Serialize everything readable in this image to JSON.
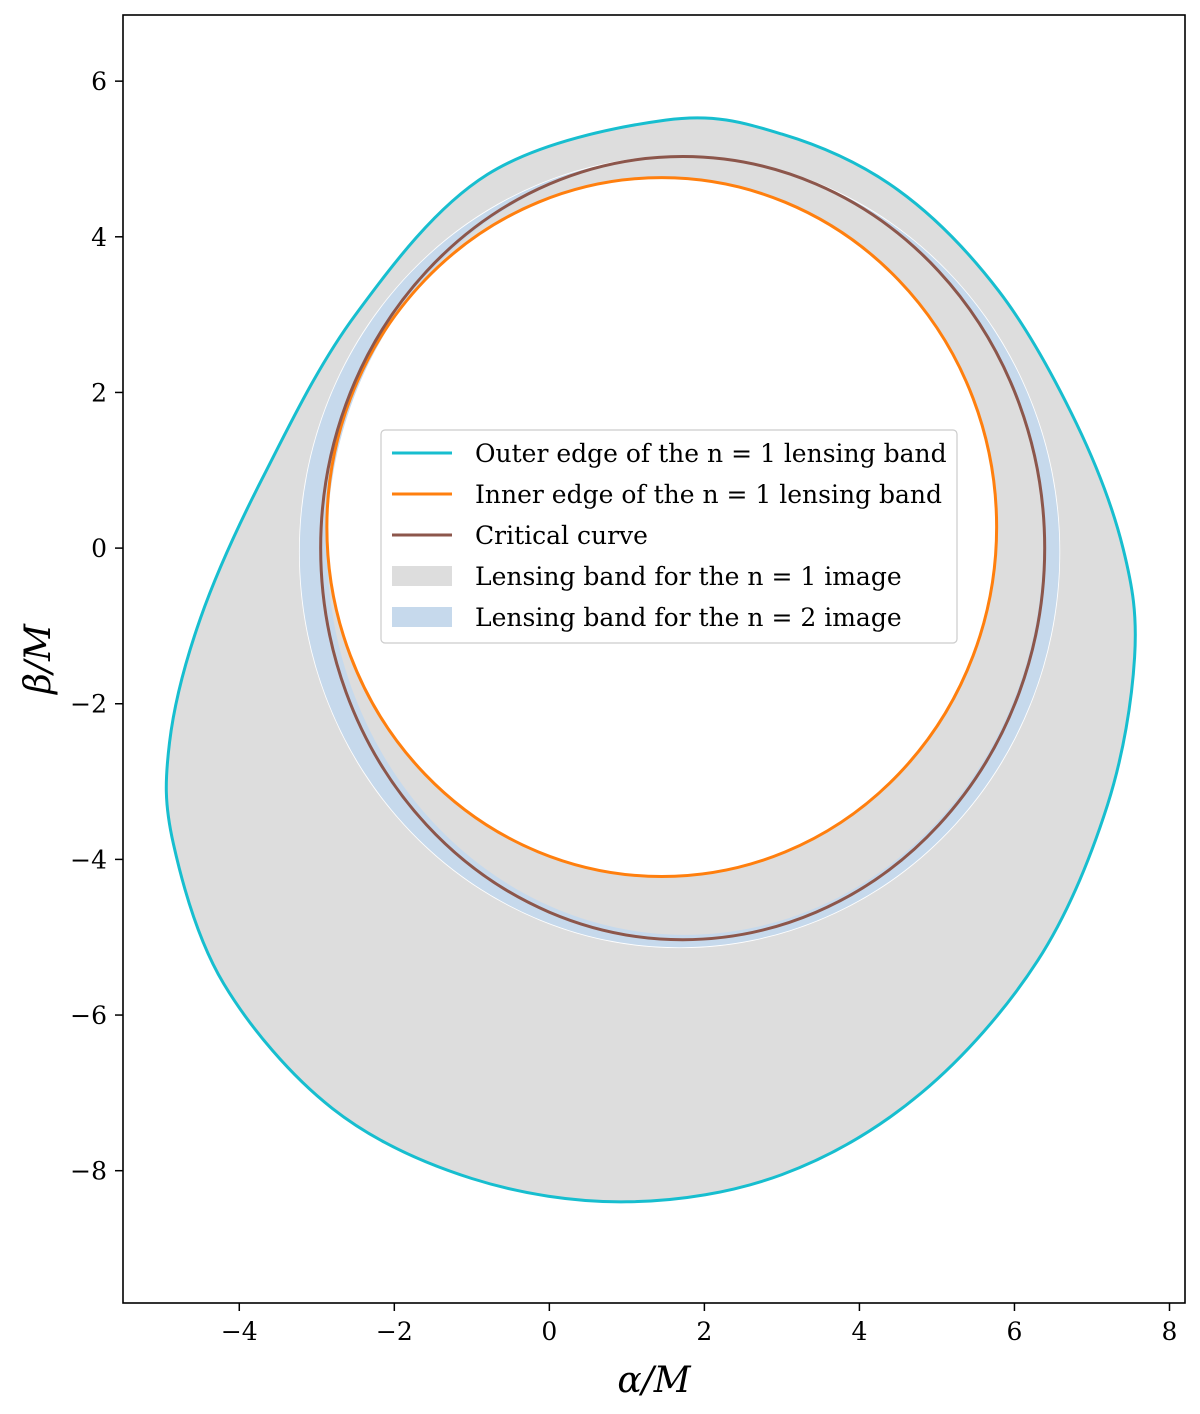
{
  "chart_data": {
    "type": "line",
    "xlabel": "α/M",
    "ylabel": "β/M",
    "xlim": [
      -5.5,
      8.2
    ],
    "ylim": [
      -9.7,
      6.85
    ],
    "xticks": [
      -4,
      -2,
      0,
      2,
      4,
      6,
      8
    ],
    "yticks": [
      -8,
      -6,
      -4,
      -2,
      0,
      2,
      4,
      6
    ],
    "xtick_labels": [
      "−4",
      "−2",
      "0",
      "2",
      "4",
      "6",
      "8"
    ],
    "ytick_labels": [
      "−8",
      "−6",
      "−4",
      "−2",
      "0",
      "2",
      "4",
      "6"
    ],
    "grid": false,
    "legend_position": "center",
    "series": [
      {
        "name": "Outer edge of the n = 1 lensing band",
        "kind": "line",
        "color": "#17becf",
        "points": [
          [
            1.5,
            5.5
          ],
          [
            3.0,
            5.32
          ],
          [
            4.5,
            4.6
          ],
          [
            5.8,
            3.3
          ],
          [
            6.8,
            1.6
          ],
          [
            7.4,
            0.0
          ],
          [
            7.55,
            -1.4
          ],
          [
            7.2,
            -3.3
          ],
          [
            6.3,
            -5.3
          ],
          [
            4.8,
            -7.0
          ],
          [
            3.0,
            -8.05
          ],
          [
            1.0,
            -8.4
          ],
          [
            -1.0,
            -8.1
          ],
          [
            -2.8,
            -7.2
          ],
          [
            -4.2,
            -5.6
          ],
          [
            -4.85,
            -3.8
          ],
          [
            -4.9,
            -2.5
          ],
          [
            -4.5,
            -0.9
          ],
          [
            -3.7,
            0.9
          ],
          [
            -2.5,
            3.0
          ],
          [
            -0.8,
            4.8
          ],
          [
            1.5,
            5.5
          ]
        ]
      },
      {
        "name": "Inner edge of the n = 1 lensing band",
        "kind": "ellipse",
        "color": "#ff7f0e",
        "center": [
          1.45,
          0.27
        ],
        "radii": [
          4.32,
          4.49
        ]
      },
      {
        "name": "Critical curve",
        "kind": "ellipse",
        "color": "#8c564b",
        "center": [
          1.72,
          0.0
        ],
        "radii": [
          4.67,
          5.03
        ]
      },
      {
        "name": "Lensing band for the n = 1 image",
        "kind": "fill",
        "color": "#dddddd"
      },
      {
        "name": "Lensing band for the n = 2 image",
        "kind": "fill",
        "color": "#c6d9ec",
        "outer": {
          "center": [
            1.68,
            -0.05
          ],
          "radii": [
            4.9,
            5.08
          ]
        },
        "inner": {
          "center": [
            1.75,
            0.03
          ],
          "radii": [
            4.62,
            5.0
          ]
        }
      }
    ]
  }
}
